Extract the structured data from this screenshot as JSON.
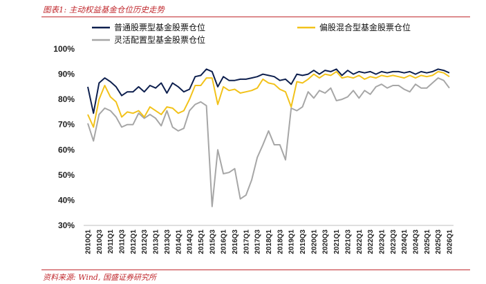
{
  "figure_label": "图表1: 主动权益基金仓位历史走势",
  "source_note": "资料来源: Wind, 国盛证券研究所",
  "chart_data": {
    "type": "line",
    "title": "",
    "xlabel": "",
    "ylabel": "",
    "ylim": [
      30,
      100
    ],
    "yticks": [
      "100%",
      "90%",
      "80%",
      "70%",
      "60%",
      "50%",
      "40%",
      "30%"
    ],
    "y_unit": "%",
    "legend_placement": "top",
    "categories": [
      "2010Q1",
      "2010Q2",
      "2010Q3",
      "2010Q4",
      "2011Q1",
      "2011Q2",
      "2011Q3",
      "2011Q4",
      "2012Q1",
      "2012Q2",
      "2012Q3",
      "2012Q4",
      "2013Q1",
      "2013Q2",
      "2013Q3",
      "2013Q4",
      "2014Q1",
      "2014Q2",
      "2014Q3",
      "2014Q4",
      "2015Q1",
      "2015Q2",
      "2015Q3",
      "2015Q4",
      "2016Q1",
      "2016Q2",
      "2016Q3",
      "2016Q4",
      "2017Q1",
      "2017Q2",
      "2017Q3",
      "2017Q4",
      "2018Q1",
      "2018Q2",
      "2018Q3",
      "2018Q4",
      "2019Q1",
      "2019Q2",
      "2019Q3",
      "2019Q4",
      "2020Q1",
      "2020Q2",
      "2020Q3",
      "2020Q4",
      "2021Q1",
      "2021Q2",
      "2021Q3",
      "2021Q4",
      "2022Q1",
      "2022Q2",
      "2022Q3",
      "2022Q4",
      "2023Q1",
      "2023Q2",
      "2023Q3",
      "2023Q4",
      "2024Q1",
      "2024Q2",
      "2024Q3",
      "2024Q4",
      "2025Q1",
      "2025Q2",
      "2025Q3",
      "2025Q4",
      "2026Q1"
    ],
    "xtick_labels": [
      "2010Q1",
      "2010Q3",
      "2011Q1",
      "2011Q3",
      "2012Q1",
      "2012Q3",
      "2013Q1",
      "2013Q3",
      "2014Q1",
      "2014Q3",
      "2015Q1",
      "2015Q3",
      "2016Q1",
      "2016Q3",
      "2017Q1",
      "2017Q3",
      "2018Q1",
      "2018Q3",
      "2019Q1",
      "2019Q3",
      "2020Q1",
      "2020Q3",
      "2021Q1",
      "2021Q3",
      "2022Q1",
      "2022Q3",
      "2023Q1",
      "2023Q3",
      "2024Q1",
      "2024Q3",
      "2025Q1",
      "2025Q3",
      "2026Q1"
    ],
    "series": [
      {
        "name": "普通股票型基金股票仓位",
        "color": "#0d1f4e",
        "values": [
          85,
          74.5,
          86.5,
          88.5,
          87,
          85,
          81.5,
          83,
          83,
          85,
          83,
          85.5,
          84.5,
          86.5,
          82.5,
          86.5,
          85,
          83,
          84,
          89,
          89.5,
          92,
          91,
          85,
          89,
          87.5,
          87.5,
          88,
          88,
          88.5,
          89,
          90,
          89.5,
          89,
          87.5,
          88,
          86,
          90,
          89.5,
          90,
          91.5,
          90,
          91.5,
          91,
          92,
          89.5,
          91.5,
          90,
          91,
          90.5,
          91,
          90,
          91,
          90.5,
          91,
          91,
          90.5,
          91,
          90,
          91,
          90.5,
          91,
          92,
          91.5,
          90.5
        ]
      },
      {
        "name": "偏股混合型基金股票仓位",
        "color": "#f2c21a",
        "values": [
          74,
          69,
          80,
          85.5,
          81,
          79,
          73,
          75,
          74.5,
          75.5,
          73,
          77,
          75.5,
          74,
          77,
          76.5,
          74.5,
          75.5,
          80,
          85.5,
          85.5,
          88.5,
          88.5,
          78,
          85,
          83.5,
          84,
          82.5,
          83,
          83.5,
          84.5,
          88,
          86.5,
          86,
          84,
          83,
          77,
          87,
          86.5,
          88,
          90,
          88.5,
          90,
          89.5,
          91,
          88.5,
          89,
          88.5,
          89.5,
          88,
          89,
          88.5,
          89.5,
          89,
          89.5,
          89,
          88.5,
          89.5,
          88.5,
          89.5,
          89,
          89.5,
          91,
          90.5,
          89
        ]
      },
      {
        "name": "灵活配置型基金股票仓位",
        "color": "#a6a6a6",
        "values": [
          70.5,
          63.5,
          74,
          76.5,
          75.5,
          73,
          69,
          70,
          70,
          74.5,
          72.5,
          74,
          72.5,
          69.5,
          75.5,
          69,
          67.5,
          68.5,
          75.5,
          78,
          79,
          77.5,
          37.5,
          60,
          50.5,
          51,
          52.5,
          40.5,
          42,
          48,
          57,
          62,
          67.5,
          62,
          62,
          56,
          76.5,
          75.5,
          77,
          83,
          80.5,
          83.5,
          82.5,
          84.5,
          79.5,
          80,
          81,
          83.5,
          80.5,
          83.5,
          82,
          85,
          86,
          84.5,
          85.5,
          85.5,
          84,
          83,
          86,
          84.5,
          84.5,
          86.5,
          88.5,
          87.5,
          84.5
        ]
      }
    ]
  }
}
